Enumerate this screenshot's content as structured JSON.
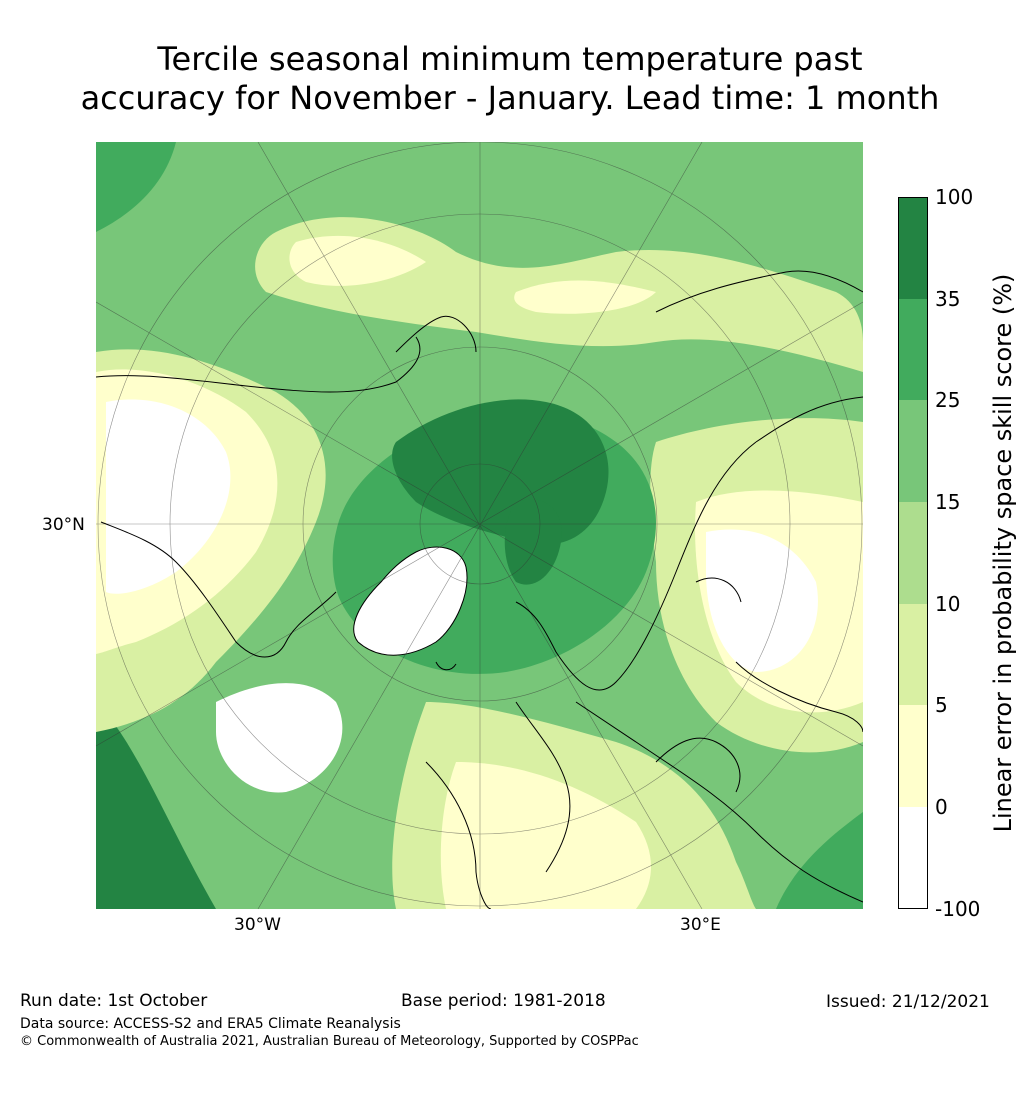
{
  "title_line1": "Tercile seasonal minimum temperature past",
  "title_line2": "accuracy for November - January. Lead time: 1 month",
  "map": {
    "lat_label": "30°N",
    "lon_left_label": "30°W",
    "lon_right_label": "30°E",
    "projection": "north polar stereographic"
  },
  "colorbar": {
    "title": "Linear error in probability space skill score (%)",
    "ticks": [
      "100",
      "35",
      "25",
      "15",
      "10",
      "5",
      "0",
      "-100"
    ],
    "bins": [
      {
        "range": "35 to 100",
        "color": "#238443"
      },
      {
        "range": "25 to 35",
        "color": "#41ab5d"
      },
      {
        "range": "15 to 25",
        "color": "#78c679"
      },
      {
        "range": "10 to 15",
        "color": "#addd8e"
      },
      {
        "range": "5 to 10",
        "color": "#d9f0a3"
      },
      {
        "range": "0 to 5",
        "color": "#ffffcc"
      },
      {
        "range": "-100 to 0",
        "color": "#ffffff"
      }
    ]
  },
  "footer": {
    "run_date": "Run date: 1st October",
    "base_period": "Base period: 1981-2018",
    "issued": "Issued: 21/12/2021",
    "data_source": "Data source: ACCESS-S2 and ERA5 Climate Reanalysis",
    "copyright": "© Commonwealth of Australia 2021, Australian Bureau of Meteorology, Supported by COSPPac"
  }
}
